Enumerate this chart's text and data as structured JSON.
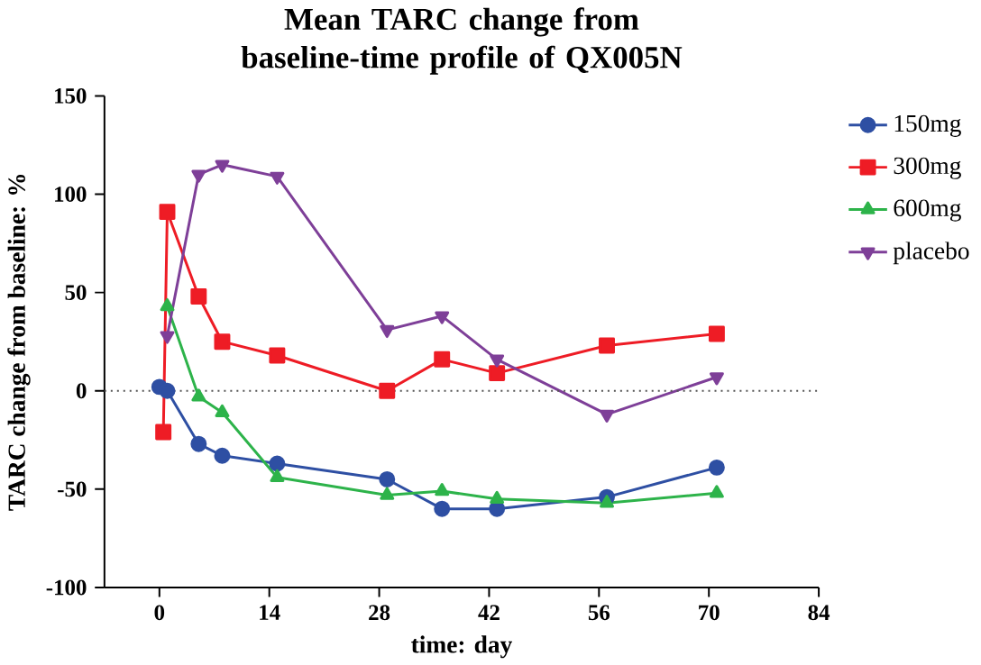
{
  "chart_data": {
    "type": "line",
    "title": "Mean TARC change from baseline-time profile of QX005N",
    "xlabel": "time: day",
    "ylabel": "TARC change from baseline: %",
    "xlim": [
      -7,
      84
    ],
    "xticks": [
      0,
      14,
      28,
      42,
      56,
      70,
      84
    ],
    "ylim": [
      -100,
      150
    ],
    "yticks": [
      -100,
      -50,
      0,
      50,
      100,
      150
    ],
    "legend": "right",
    "grid": false,
    "ref_lines": [
      {
        "axis": "y",
        "value": 0,
        "line_style": "dotted",
        "color": "#555555"
      }
    ],
    "series": [
      {
        "name": "150mg",
        "color": "#2e4fa3",
        "marker": "circle",
        "x": [
          0,
          1,
          5,
          8,
          15,
          29,
          36,
          43,
          57,
          71
        ],
        "values": [
          2,
          0,
          -27,
          -33,
          -37,
          -45,
          -60,
          -60,
          -54,
          -39
        ]
      },
      {
        "name": "300mg",
        "color": "#ee1c25",
        "marker": "square",
        "x": [
          0.5,
          1,
          5,
          8,
          15,
          29,
          36,
          43,
          57,
          71
        ],
        "values": [
          -21,
          91,
          48,
          25,
          18,
          0,
          16,
          9,
          23,
          29
        ]
      },
      {
        "name": "600mg",
        "color": "#2db34a",
        "marker": "triangle",
        "x": [
          1,
          5,
          8,
          15,
          29,
          36,
          43,
          57,
          71
        ],
        "values": [
          43,
          -3,
          -11,
          -44,
          -53,
          -51,
          -55,
          -57,
          -52
        ]
      },
      {
        "name": "placebo",
        "color": "#7e3f98",
        "marker": "triangle down",
        "x": [
          1,
          5,
          8,
          15,
          29,
          36,
          43,
          57,
          71
        ],
        "values": [
          28,
          110,
          115,
          109,
          31,
          38,
          16,
          -12,
          7
        ]
      }
    ]
  }
}
